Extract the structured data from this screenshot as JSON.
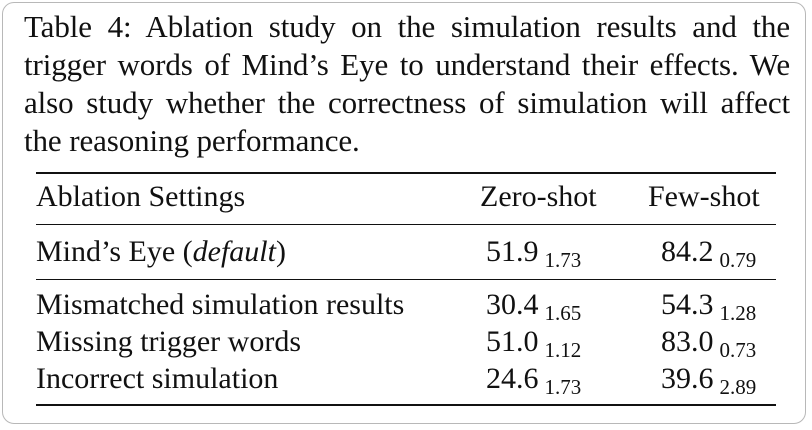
{
  "caption": "Table 4: Ablation study on the simulation results and the trigger words of Mind’s Eye to understand their effects. We also study whether the correctness of simulation will affect the reasoning performance.",
  "table": {
    "headers": [
      "Ablation Settings",
      "Zero-shot",
      "Few-shot"
    ],
    "default_row": {
      "label_main": "Mind’s Eye (",
      "label_italic": "default",
      "label_close": ")",
      "zero_shot": {
        "mean": "51.9",
        "std": "1.73"
      },
      "few_shot": {
        "mean": "84.2",
        "std": "0.79"
      }
    },
    "rows": [
      {
        "label": "Mismatched simulation results",
        "zero_shot": {
          "mean": "30.4",
          "std": "1.65"
        },
        "few_shot": {
          "mean": "54.3",
          "std": "1.28"
        }
      },
      {
        "label": "Missing trigger words",
        "zero_shot": {
          "mean": "51.0",
          "std": "1.12"
        },
        "few_shot": {
          "mean": "83.0",
          "std": "0.73"
        }
      },
      {
        "label": "Incorrect simulation",
        "zero_shot": {
          "mean": "24.6",
          "std": "1.73"
        },
        "few_shot": {
          "mean": "39.6",
          "std": "2.89"
        }
      }
    ]
  }
}
